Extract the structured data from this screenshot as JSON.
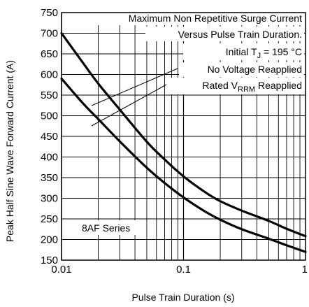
{
  "chart_data": {
    "type": "line",
    "xlabel": "Pulse Train Duration (s)",
    "ylabel": "Peak Half Sine Wave Forward Current (A)",
    "x_scale": "log",
    "xlim": [
      0.01,
      1
    ],
    "ylim": [
      150,
      750
    ],
    "grid": true,
    "x_ticks": [
      "0.01",
      "0.1",
      "1"
    ],
    "y_ticks": [
      "150",
      "200",
      "250",
      "300",
      "350",
      "400",
      "450",
      "500",
      "550",
      "600",
      "650",
      "700",
      "750"
    ],
    "annotations": {
      "title_line1": "Maximum Non Repetitive Surge Current",
      "title_line2": "Versus Pulse Train Duration.",
      "temp_prefix": "Initial T",
      "temp_sub": "J",
      "temp_suffix": " = 195 °C",
      "no_voltage": "No Voltage Reapplied",
      "rated_prefix": "Rated V",
      "rated_sub": "RRM",
      "rated_suffix": " Reapplied",
      "series": "8AF Series"
    },
    "series": [
      {
        "id": "no-voltage-reapplied",
        "x": [
          0.01,
          0.015,
          0.02,
          0.03,
          0.05,
          0.07,
          0.1,
          0.15,
          0.2,
          0.3,
          0.5,
          0.7,
          1.0
        ],
        "y": [
          700,
          628,
          578,
          515,
          437,
          394,
          353,
          315,
          293,
          270,
          245,
          226,
          208
        ]
      },
      {
        "id": "rated-vrrm-reapplied",
        "x": [
          0.01,
          0.015,
          0.02,
          0.03,
          0.05,
          0.07,
          0.1,
          0.15,
          0.2,
          0.3,
          0.5,
          0.7,
          1.0
        ],
        "y": [
          590,
          530,
          492,
          438,
          374,
          337,
          302,
          268,
          248,
          225,
          202,
          186,
          170
        ]
      }
    ]
  }
}
